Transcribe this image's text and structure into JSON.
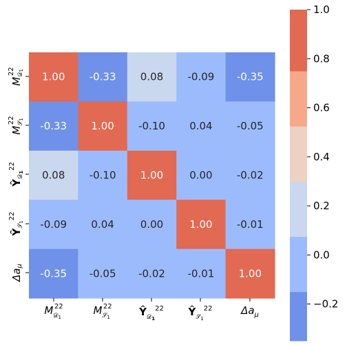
{
  "chart_data": {
    "type": "heatmap",
    "title": "",
    "row_labels": [
      "M_D1^22",
      "M_S1^22",
      "Ŷ_D1^22",
      "Ŷ_S1^22",
      "Δa_μ"
    ],
    "col_labels": [
      "M_D1^22",
      "M_S1^22",
      "Ŷ_D1^22",
      "Ŷ_S1^22",
      "Δa_μ"
    ],
    "values": [
      [
        1.0,
        -0.33,
        0.08,
        -0.09,
        -0.35
      ],
      [
        -0.33,
        1.0,
        -0.1,
        0.04,
        -0.05
      ],
      [
        0.08,
        -0.1,
        1.0,
        0.0,
        -0.02
      ],
      [
        -0.09,
        0.04,
        0.0,
        1.0,
        -0.01
      ],
      [
        -0.35,
        -0.05,
        -0.02,
        -0.01,
        1.0
      ]
    ],
    "cell_labels": [
      [
        "1.00",
        "-0.33",
        "0.08",
        "-0.09",
        "-0.35"
      ],
      [
        "-0.33",
        "1.00",
        "-0.10",
        "0.04",
        "-0.05"
      ],
      [
        "0.08",
        "-0.10",
        "1.00",
        "0.00",
        "-0.02"
      ],
      [
        "-0.09",
        "0.04",
        "0.00",
        "1.00",
        "-0.01"
      ],
      [
        "-0.35",
        "-0.05",
        "-0.02",
        "-0.01",
        "1.00"
      ]
    ],
    "colorbar": {
      "range": [
        -0.35,
        1.0
      ],
      "ticks": [
        1.0,
        0.8,
        0.6,
        0.4,
        0.2,
        0.0,
        -0.2
      ],
      "tick_labels": [
        "1.0",
        "0.8",
        "0.6",
        "0.4",
        "0.2",
        "0.0",
        "−0.2"
      ],
      "bins": [
        {
          "from": -0.35,
          "to": -0.15,
          "color": "#6f91e9"
        },
        {
          "from": -0.15,
          "to": 0.075,
          "color": "#9cbbfd"
        },
        {
          "from": 0.075,
          "to": 0.3,
          "color": "#c9d7ef"
        },
        {
          "from": 0.3,
          "to": 0.525,
          "color": "#edd1c2"
        },
        {
          "from": 0.525,
          "to": 0.75,
          "color": "#f7a889"
        },
        {
          "from": 0.75,
          "to": 1.0,
          "color": "#e26952"
        }
      ]
    },
    "text_colors": {
      "light": "#ffffff",
      "dark": "#262626"
    }
  }
}
